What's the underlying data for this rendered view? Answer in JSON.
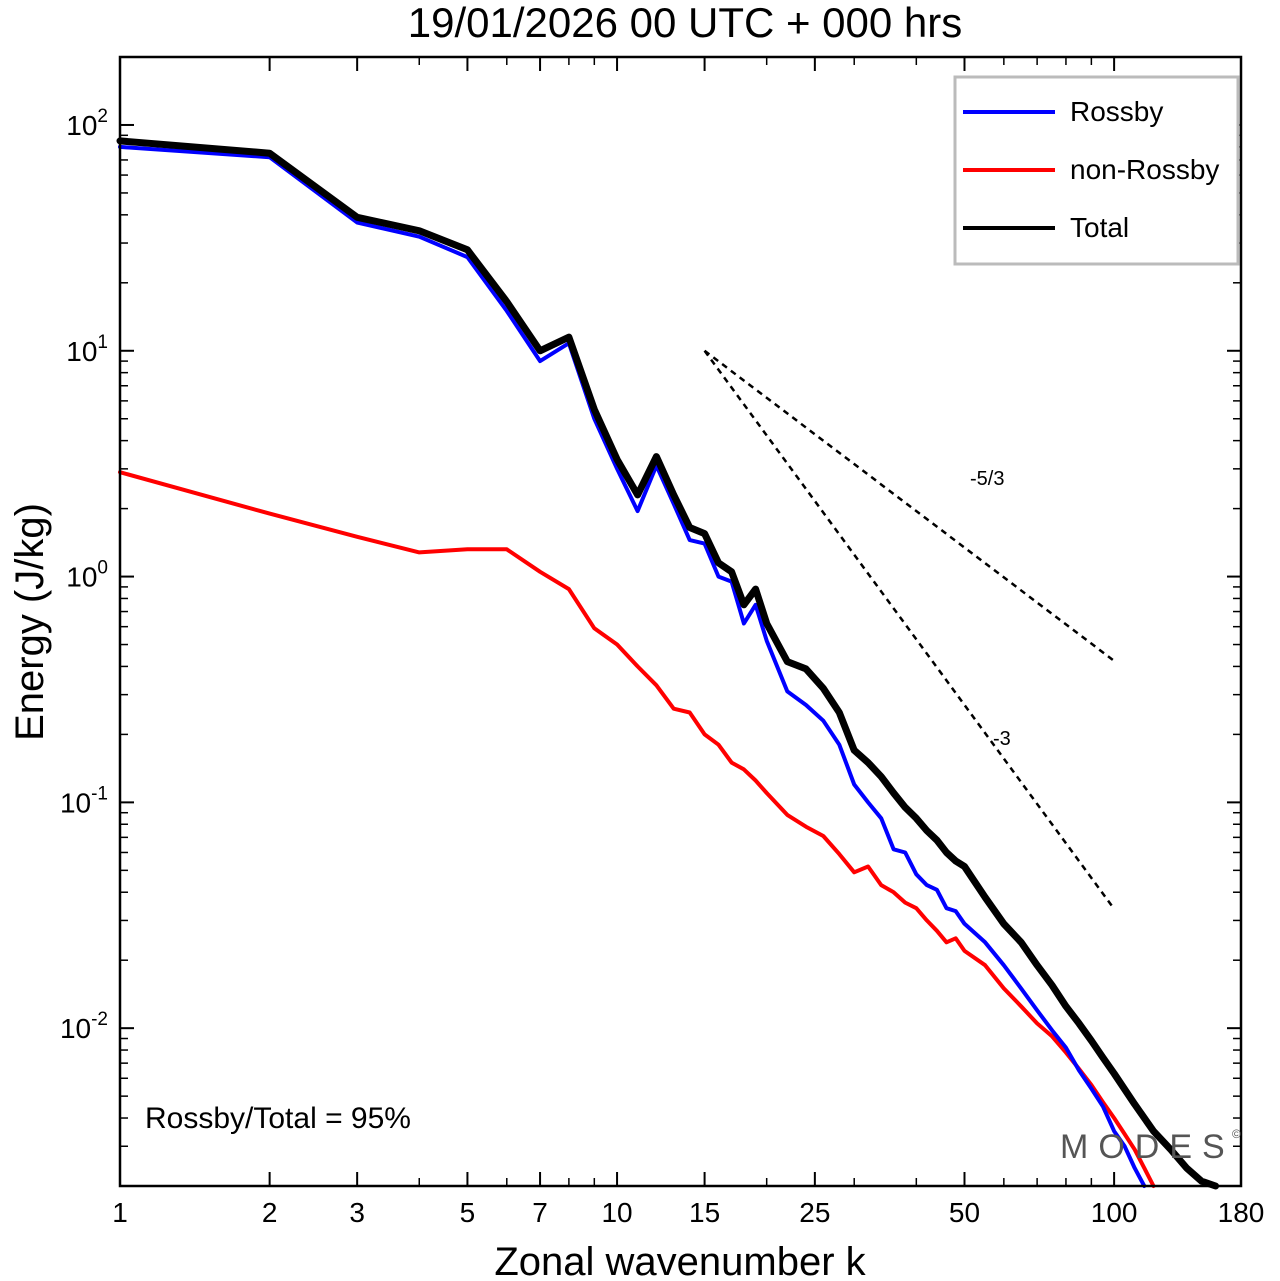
{
  "chart_data": {
    "type": "line",
    "title": "19/01/2026  00 UTC  + 000 hrs",
    "xlabel": "Zonal wavenumber k",
    "ylabel": "Energy (J/kg)",
    "xscale": "log",
    "yscale": "log",
    "xlim": [
      1,
      180
    ],
    "ylim": [
      0.002,
      200
    ],
    "xticks": [
      1,
      2,
      3,
      5,
      7,
      10,
      15,
      25,
      50,
      100,
      180
    ],
    "xtick_labels": [
      "1",
      "2",
      "3",
      "5",
      "7",
      "10",
      "15",
      "25",
      "50",
      "100",
      "180"
    ],
    "yticks": [
      {
        "base": "10",
        "exp": "2",
        "value": 100
      },
      {
        "base": "10",
        "exp": "1",
        "value": 10
      },
      {
        "base": "10",
        "exp": "0",
        "value": 1
      },
      {
        "base": "10",
        "exp": "-1",
        "value": 0.1
      },
      {
        "base": "10",
        "exp": "-2",
        "value": 0.01
      }
    ],
    "legend_position": "top-right",
    "series": [
      {
        "name": "Rossby",
        "color": "#0000ff",
        "x": [
          1,
          2,
          3,
          4,
          5,
          6,
          7,
          8,
          9,
          10,
          11,
          12,
          13,
          14,
          15,
          16,
          17,
          18,
          19,
          20,
          22,
          24,
          26,
          28,
          30,
          32,
          34,
          36,
          38,
          40,
          42,
          44,
          46,
          48,
          50,
          55,
          60,
          65,
          70,
          75,
          80,
          85,
          90,
          95,
          100,
          105,
          110,
          115
        ],
        "values": [
          80,
          72,
          37,
          32,
          26,
          15,
          9.0,
          10.8,
          5.0,
          3.0,
          1.95,
          3.1,
          2.1,
          1.45,
          1.4,
          1.0,
          0.95,
          0.62,
          0.75,
          0.52,
          0.31,
          0.27,
          0.23,
          0.18,
          0.12,
          0.1,
          0.085,
          0.062,
          0.06,
          0.048,
          0.043,
          0.041,
          0.034,
          0.033,
          0.029,
          0.024,
          0.019,
          0.015,
          0.012,
          0.0098,
          0.0082,
          0.0065,
          0.0054,
          0.0045,
          0.0035,
          0.003,
          0.0024,
          0.002
        ]
      },
      {
        "name": "non-Rossby",
        "color": "#ff0000",
        "x": [
          1,
          2,
          3,
          4,
          5,
          6,
          7,
          8,
          9,
          10,
          11,
          12,
          13,
          14,
          15,
          16,
          17,
          18,
          19,
          20,
          22,
          24,
          26,
          28,
          30,
          32,
          34,
          36,
          38,
          40,
          42,
          44,
          46,
          48,
          50,
          55,
          60,
          65,
          70,
          75,
          80,
          85,
          90,
          95,
          100,
          105,
          110,
          115,
          120
        ],
        "values": [
          2.9,
          1.9,
          1.5,
          1.28,
          1.32,
          1.32,
          1.05,
          0.88,
          0.59,
          0.5,
          0.4,
          0.33,
          0.26,
          0.25,
          0.2,
          0.18,
          0.15,
          0.14,
          0.125,
          0.11,
          0.088,
          0.078,
          0.071,
          0.059,
          0.049,
          0.052,
          0.043,
          0.04,
          0.036,
          0.034,
          0.03,
          0.027,
          0.024,
          0.025,
          0.022,
          0.019,
          0.015,
          0.0125,
          0.0105,
          0.0092,
          0.0078,
          0.0066,
          0.0056,
          0.0047,
          0.004,
          0.0034,
          0.0029,
          0.0024,
          0.002
        ]
      },
      {
        "name": "Total",
        "color": "#000000",
        "x": [
          1,
          2,
          3,
          4,
          5,
          6,
          7,
          8,
          9,
          10,
          11,
          12,
          13,
          14,
          15,
          16,
          17,
          18,
          19,
          20,
          22,
          24,
          26,
          28,
          30,
          32,
          34,
          36,
          38,
          40,
          42,
          44,
          46,
          48,
          50,
          55,
          60,
          65,
          70,
          75,
          80,
          85,
          90,
          95,
          100,
          110,
          120,
          130,
          140,
          150,
          160
        ],
        "values": [
          85,
          75,
          39,
          34,
          28,
          16.5,
          10,
          11.5,
          5.5,
          3.3,
          2.3,
          3.4,
          2.3,
          1.65,
          1.55,
          1.15,
          1.05,
          0.75,
          0.88,
          0.62,
          0.42,
          0.39,
          0.32,
          0.25,
          0.17,
          0.15,
          0.13,
          0.11,
          0.095,
          0.085,
          0.075,
          0.068,
          0.06,
          0.055,
          0.052,
          0.038,
          0.029,
          0.024,
          0.019,
          0.0155,
          0.0125,
          0.0105,
          0.0088,
          0.0074,
          0.0063,
          0.0046,
          0.0035,
          0.0029,
          0.0024,
          0.0021,
          0.002
        ]
      }
    ],
    "reference_lines": [
      {
        "label": "-5/3",
        "slope": -1.6667,
        "x": [
          15,
          100
        ],
        "y_start": 10
      },
      {
        "label": "-3",
        "slope": -3,
        "x": [
          15,
          100
        ],
        "y_start": 10
      }
    ],
    "annotation": "Rossby/Total = 95%",
    "watermark": "MODES",
    "watermark_mark": "©"
  }
}
